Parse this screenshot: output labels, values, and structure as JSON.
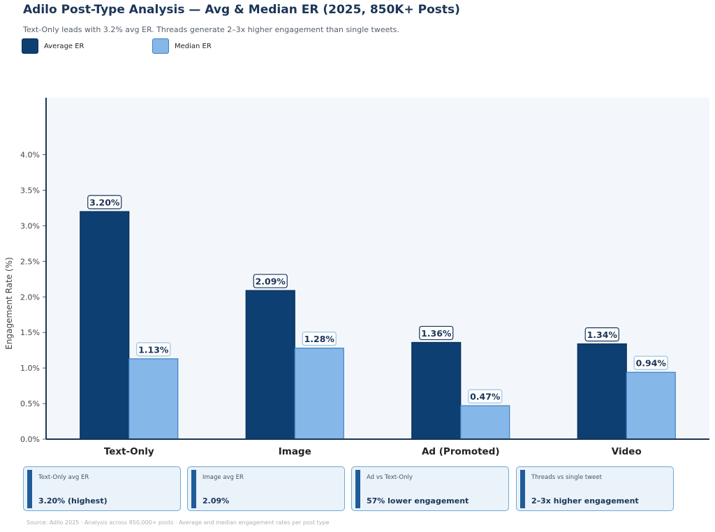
{
  "header": {
    "title": "Adilo Post-Type Analysis — Avg & Median ER (2025, 850K+ Posts)",
    "subtitle": "Text-Only leads with 3.2% avg ER. Threads generate 2–3x higher engagement than single tweets."
  },
  "colors": {
    "average": "#0d3f73",
    "median": "#86b7e9",
    "plot_bg": "#f3f7fc",
    "axis": "#1b3557"
  },
  "chart_data": {
    "type": "bar",
    "title": "Adilo Post-Type Analysis — Avg & Median ER (2025, 850K+ Posts)",
    "ylabel": "Engagement Rate (%)",
    "xlabel": "",
    "categories": [
      "Text-Only",
      "Image",
      "Ad (Promoted)",
      "Video"
    ],
    "series": [
      {
        "name": "Average ER",
        "values": [
          3.2,
          2.09,
          1.36,
          1.34
        ],
        "labels": [
          "3.20%",
          "2.09%",
          "1.36%",
          "1.34%"
        ]
      },
      {
        "name": "Median ER",
        "values": [
          1.13,
          1.28,
          0.47,
          0.94
        ],
        "labels": [
          "1.13%",
          "1.28%",
          "0.47%",
          "0.94%"
        ]
      }
    ],
    "yticks": [
      0,
      0.5,
      1.0,
      1.5,
      2.0,
      2.5,
      3.0,
      3.5,
      4.0
    ],
    "ytick_labels": [
      "0.0%",
      "0.5%",
      "1.0%",
      "1.5%",
      "2.0%",
      "2.5%",
      "3.0%",
      "3.5%",
      "4.0%"
    ],
    "ylim": [
      0,
      4.8
    ],
    "grid": false,
    "legend": "top-left"
  },
  "cards": [
    {
      "label": "Text-Only avg ER",
      "value": "3.20% (highest)"
    },
    {
      "label": "Image avg ER",
      "value": "2.09%"
    },
    {
      "label": "Ad vs Text-Only",
      "value": "57% lower engagement"
    },
    {
      "label": "Threads vs single tweet",
      "value": "2–3x higher engagement"
    }
  ],
  "footer": {
    "source": "Source: Adilo 2025 · Analysis across 850,000+ posts · Average and median engagement rates per post type"
  }
}
